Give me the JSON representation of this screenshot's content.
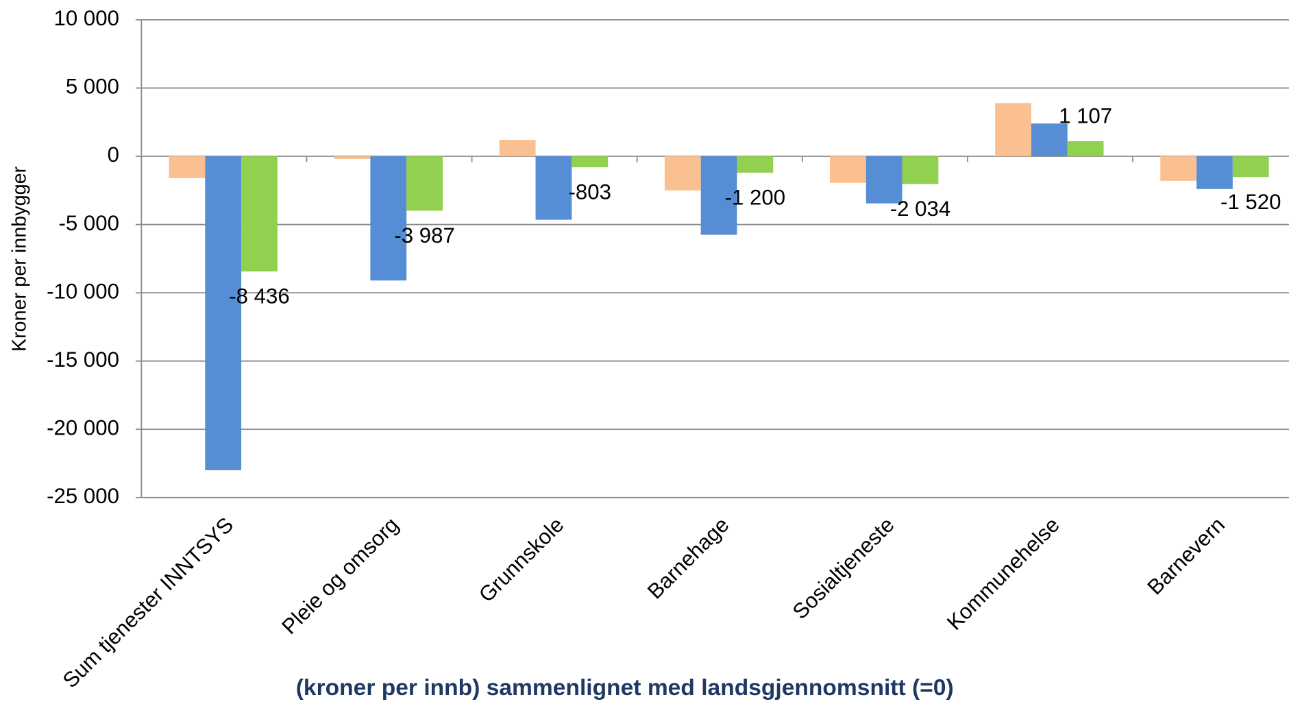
{
  "chart_data": {
    "type": "bar",
    "title": "(kroner per innb) sammenlignet med landsgjennomsnitt (=0)",
    "y_label": "Kroner per innbygger",
    "categories": [
      "Sum tjenester INNTSYS",
      "Pleie og omsorg",
      "Grunnskole",
      "Barnehage",
      "Sosialtjeneste",
      "Kommunehelse",
      "Barnevern"
    ],
    "series": [
      {
        "color": "#fac090",
        "values": [
          -1600,
          -200,
          1200,
          -2500,
          -1950,
          3900,
          -1800
        ]
      },
      {
        "color": "#558ed5",
        "values": [
          -23000,
          -9100,
          -4650,
          -5750,
          -3450,
          2400,
          -2400
        ]
      },
      {
        "color": "#92d050",
        "values": [
          -8436,
          -3987,
          -803,
          -1200,
          -2034,
          1107,
          -1520
        ],
        "value_labels": [
          "-8 436",
          "-3 987",
          "-803",
          "-1 200",
          "-2 034",
          "1 107",
          "-1 520"
        ]
      }
    ],
    "ylim": [
      -25000,
      10000
    ],
    "yticks": [
      {
        "value": -25000,
        "label": "-25 000"
      },
      {
        "value": -20000,
        "label": "-20 000"
      },
      {
        "value": -15000,
        "label": "-15 000"
      },
      {
        "value": -10000,
        "label": "-10 000"
      },
      {
        "value": -5000,
        "label": "-5 000"
      },
      0,
      {
        "value": 5000,
        "label": "5 000"
      },
      {
        "value": 10000,
        "label": "10 000"
      }
    ],
    "grid": true
  }
}
